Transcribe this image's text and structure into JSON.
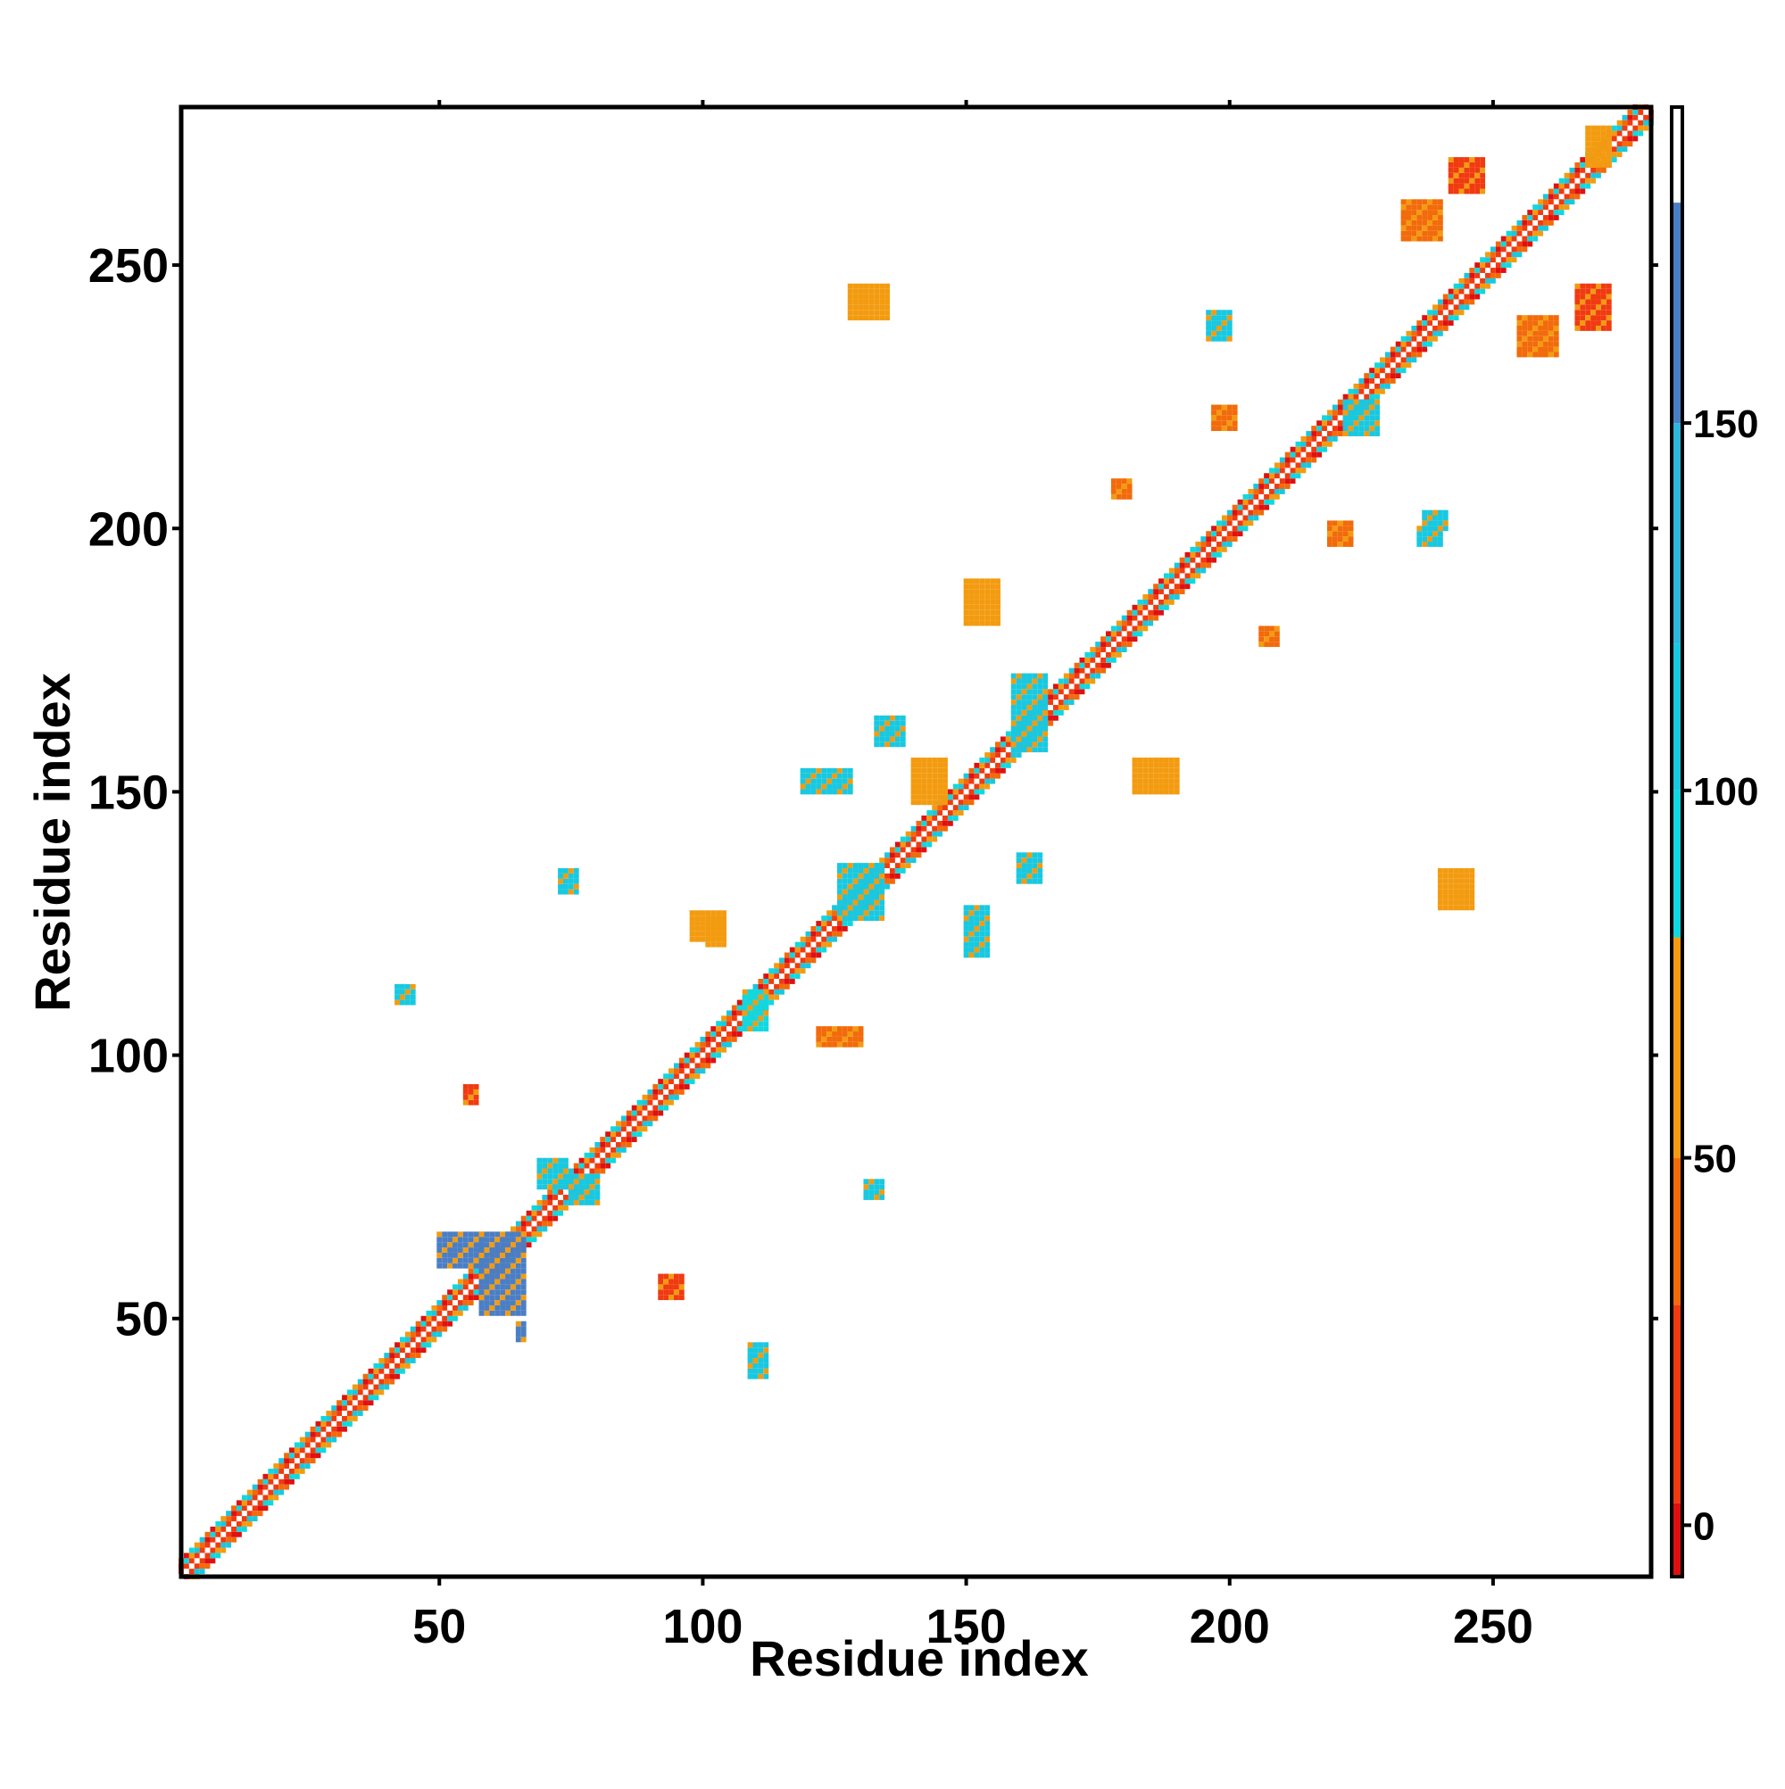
{
  "chart_data": {
    "type": "heatmap",
    "title": "",
    "xlabel": "Residue index",
    "ylabel": "Residue index",
    "xlim": [
      1,
      280
    ],
    "ylim": [
      1,
      280
    ],
    "x_ticks": [
      "50",
      "100",
      "150",
      "200",
      "250"
    ],
    "y_ticks": [
      "50",
      "100",
      "150",
      "200",
      "250"
    ],
    "grid": false,
    "colorbar": {
      "ticks": [
        "0",
        "50",
        "100",
        "150"
      ],
      "range": [
        -7,
        193
      ],
      "bands": [
        {
          "from": -7,
          "to": 3,
          "color": "#e01010"
        },
        {
          "from": 3,
          "to": 30,
          "color": "#f03a10"
        },
        {
          "from": 30,
          "to": 50,
          "color": "#f26a0a"
        },
        {
          "from": 50,
          "to": 80,
          "color": "#f39b10"
        },
        {
          "from": 80,
          "to": 100,
          "color": "#10d8e0"
        },
        {
          "from": 100,
          "to": 120,
          "color": "#18c8e0"
        },
        {
          "from": 120,
          "to": 150,
          "color": "#2fb6dc"
        },
        {
          "from": 150,
          "to": 180,
          "color": "#4a7ec4"
        },
        {
          "from": 180,
          "to": 193,
          "color": "#ffffff"
        }
      ]
    },
    "diagonal": {
      "from": 1,
      "to": 280,
      "band_half_width": 3
    },
    "contact_patches": [
      {
        "x": [
          55,
          57
        ],
        "y": [
          91,
          94
        ],
        "value": 10
      },
      {
        "x": [
          92,
          96
        ],
        "y": [
          54,
          58
        ],
        "value": 12
      },
      {
        "x": [
          73,
          76
        ],
        "y": [
          131,
          135
        ],
        "value": 100
      },
      {
        "x": [
          131,
          134
        ],
        "y": [
          73,
          76
        ],
        "value": 100
      },
      {
        "x": [
          42,
          45
        ],
        "y": [
          110,
          113
        ],
        "value": 100
      },
      {
        "x": [
          108,
          112
        ],
        "y": [
          105,
          112
        ],
        "value": 95
      },
      {
        "x": [
          58,
          66
        ],
        "y": [
          51,
          66
        ],
        "value": 160
      },
      {
        "x": [
          50,
          58
        ],
        "y": [
          60,
          66
        ],
        "value": 160
      },
      {
        "x": [
          65,
          66
        ],
        "y": [
          46,
          49
        ],
        "value": 160
      },
      {
        "x": [
          159,
          165
        ],
        "y": [
          158,
          172
        ],
        "value": 100
      },
      {
        "x": [
          126,
          134
        ],
        "y": [
          126,
          136
        ],
        "value": 100
      },
      {
        "x": [
          178,
          181
        ],
        "y": [
          206,
          209
        ],
        "value": 30
      },
      {
        "x": [
          206,
          209
        ],
        "y": [
          178,
          181
        ],
        "value": 30
      },
      {
        "x": [
          237,
          241
        ],
        "y": [
          200,
          203
        ],
        "value": 100
      },
      {
        "x": [
          222,
          228
        ],
        "y": [
          218,
          224
        ],
        "value": 100
      },
      {
        "x": [
          268,
          272
        ],
        "y": [
          269,
          276
        ],
        "value": 60
      },
      {
        "x": [
          182,
          190
        ],
        "y": [
          150,
          156
        ],
        "value": 60
      },
      {
        "x": [
          150,
          156
        ],
        "y": [
          182,
          190
        ],
        "value": 60
      },
      {
        "x": [
          109,
          112
        ],
        "y": [
          39,
          45
        ],
        "value": 100
      },
      {
        "x": [
          122,
          130
        ],
        "y": [
          102,
          105
        ],
        "value": 40
      },
      {
        "x": [
          101,
          104
        ],
        "y": [
          121,
          126
        ],
        "value": 60
      },
      {
        "x": [
          196,
          200
        ],
        "y": [
          236,
          241
        ],
        "value": 100
      },
      {
        "x": [
          236,
          240
        ],
        "y": [
          197,
          200
        ],
        "value": 100
      },
      {
        "x": [
          150,
          154
        ],
        "y": [
          119,
          128
        ],
        "value": 100
      },
      {
        "x": [
          119,
          128
        ],
        "y": [
          150,
          154
        ],
        "value": 100
      },
      {
        "x": [
          133,
          138
        ],
        "y": [
          159,
          164
        ],
        "value": 100
      },
      {
        "x": [
          160,
          164
        ],
        "y": [
          133,
          138
        ],
        "value": 100
      },
      {
        "x": [
          255,
          262
        ],
        "y": [
          233,
          240
        ],
        "value": 40
      },
      {
        "x": [
          233,
          240
        ],
        "y": [
          255,
          262
        ],
        "value": 40
      },
      {
        "x": [
          266,
          272
        ],
        "y": [
          238,
          246
        ],
        "value": 20
      },
      {
        "x": [
          242,
          248
        ],
        "y": [
          264,
          270
        ],
        "value": 20
      },
      {
        "x": [
          128,
          135
        ],
        "y": [
          240,
          246
        ],
        "value": 60
      },
      {
        "x": [
          240,
          246
        ],
        "y": [
          128,
          135
        ],
        "value": 60
      },
      {
        "x": [
          75,
          80
        ],
        "y": [
          72,
          77
        ],
        "value": 100
      },
      {
        "x": [
          69,
          74
        ],
        "y": [
          75,
          80
        ],
        "value": 100
      },
      {
        "x": [
          98,
          104
        ],
        "y": [
          122,
          127
        ],
        "value": 60
      },
      {
        "x": [
          140,
          146
        ],
        "y": [
          148,
          156
        ],
        "value": 50
      },
      {
        "x": [
          197,
          201
        ],
        "y": [
          219,
          223
        ],
        "value": 40
      },
      {
        "x": [
          219,
          223
        ],
        "y": [
          197,
          201
        ],
        "value": 40
      }
    ]
  }
}
